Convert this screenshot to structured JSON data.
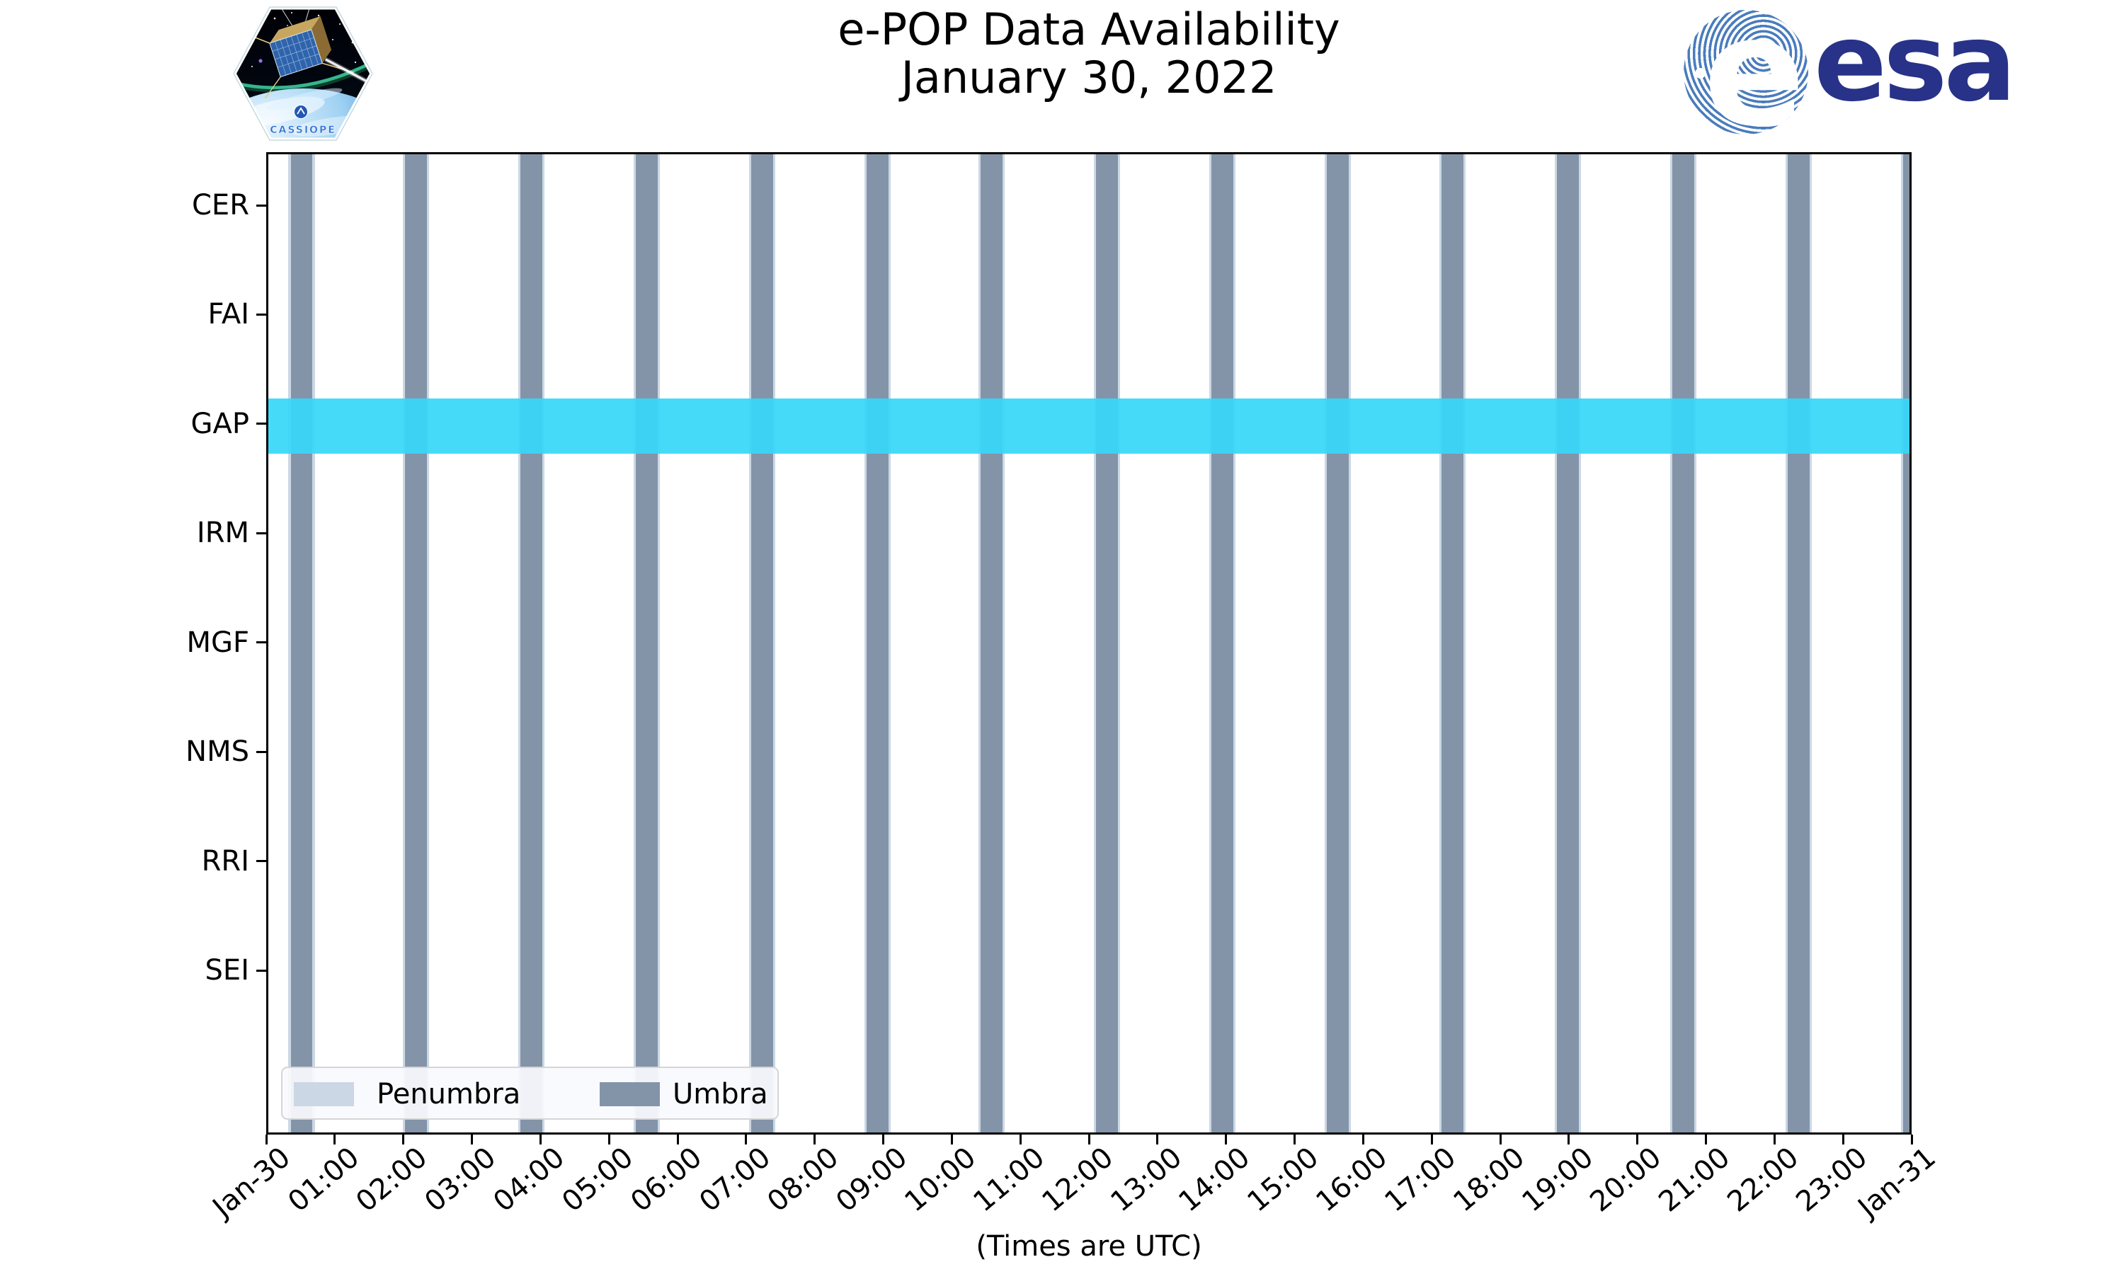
{
  "header": {
    "title": "e-POP Data Availability",
    "subtitle": "January 30, 2022"
  },
  "logos": {
    "cassiope": {
      "label": "CASSIOPE"
    },
    "esa": {
      "wordmark": "esa",
      "globe_letter": "e",
      "navy": "#273288",
      "globe_blue": "#4a7cbc"
    }
  },
  "y_axis": {
    "labels": [
      "CER",
      "FAI",
      "GAP",
      "IRM",
      "MGF",
      "NMS",
      "RRI",
      "SEI"
    ]
  },
  "x_axis": {
    "tick_labels": [
      "Jan-30",
      "01:00",
      "02:00",
      "03:00",
      "04:00",
      "05:00",
      "06:00",
      "07:00",
      "08:00",
      "09:00",
      "10:00",
      "11:00",
      "12:00",
      "13:00",
      "14:00",
      "15:00",
      "16:00",
      "17:00",
      "18:00",
      "19:00",
      "20:00",
      "21:00",
      "22:00",
      "23:00",
      "Jan-31"
    ],
    "label": "(Times are UTC)"
  },
  "legend": {
    "items": [
      {
        "label": "Penumbra",
        "color": "#cbd7e4"
      },
      {
        "label": "Umbra",
        "color": "#8494a8"
      }
    ]
  },
  "colors": {
    "umbra": "#8494a8",
    "penumbra": "#cbd7e4",
    "gap_availability": "#38d7f9",
    "spine": "#000000"
  },
  "chart_data": {
    "type": "availability-timeline",
    "title": "e-POP Data Availability",
    "subtitle": "January 30, 2022",
    "y_categories": [
      "CER",
      "FAI",
      "GAP",
      "IRM",
      "MGF",
      "NMS",
      "RRI",
      "SEI"
    ],
    "x_range_labels": [
      "Jan-30 00:00 UTC",
      "Jan-31 00:00 UTC"
    ],
    "x_total_minutes": 1440,
    "xlabel": "(Times are UTC)",
    "availability": [
      {
        "instrument": "GAP",
        "start_minutes": 0,
        "end_minutes": 1440,
        "color": "#38d7f9"
      }
    ],
    "eclipse_bands": {
      "note": "vertical orbital eclipse bands spanning all rows",
      "period_minutes": 100.8,
      "umbra_duration_minutes": 19,
      "penumbra_duration_minutes_each_side": 2,
      "centers_minutes": [
        31,
        131,
        232,
        333,
        434,
        535,
        635,
        736,
        837,
        938,
        1038,
        1139,
        1240,
        1341,
        1442
      ],
      "centers_hhmm": [
        "00:31",
        "02:11",
        "03:52",
        "05:33",
        "07:14",
        "08:55",
        "10:35",
        "12:16",
        "13:57",
        "15:38",
        "17:18",
        "18:59",
        "20:40",
        "22:21",
        "24:02"
      ]
    },
    "legend": [
      "Penumbra",
      "Umbra"
    ],
    "grid": false,
    "legend_position": "lower left"
  }
}
